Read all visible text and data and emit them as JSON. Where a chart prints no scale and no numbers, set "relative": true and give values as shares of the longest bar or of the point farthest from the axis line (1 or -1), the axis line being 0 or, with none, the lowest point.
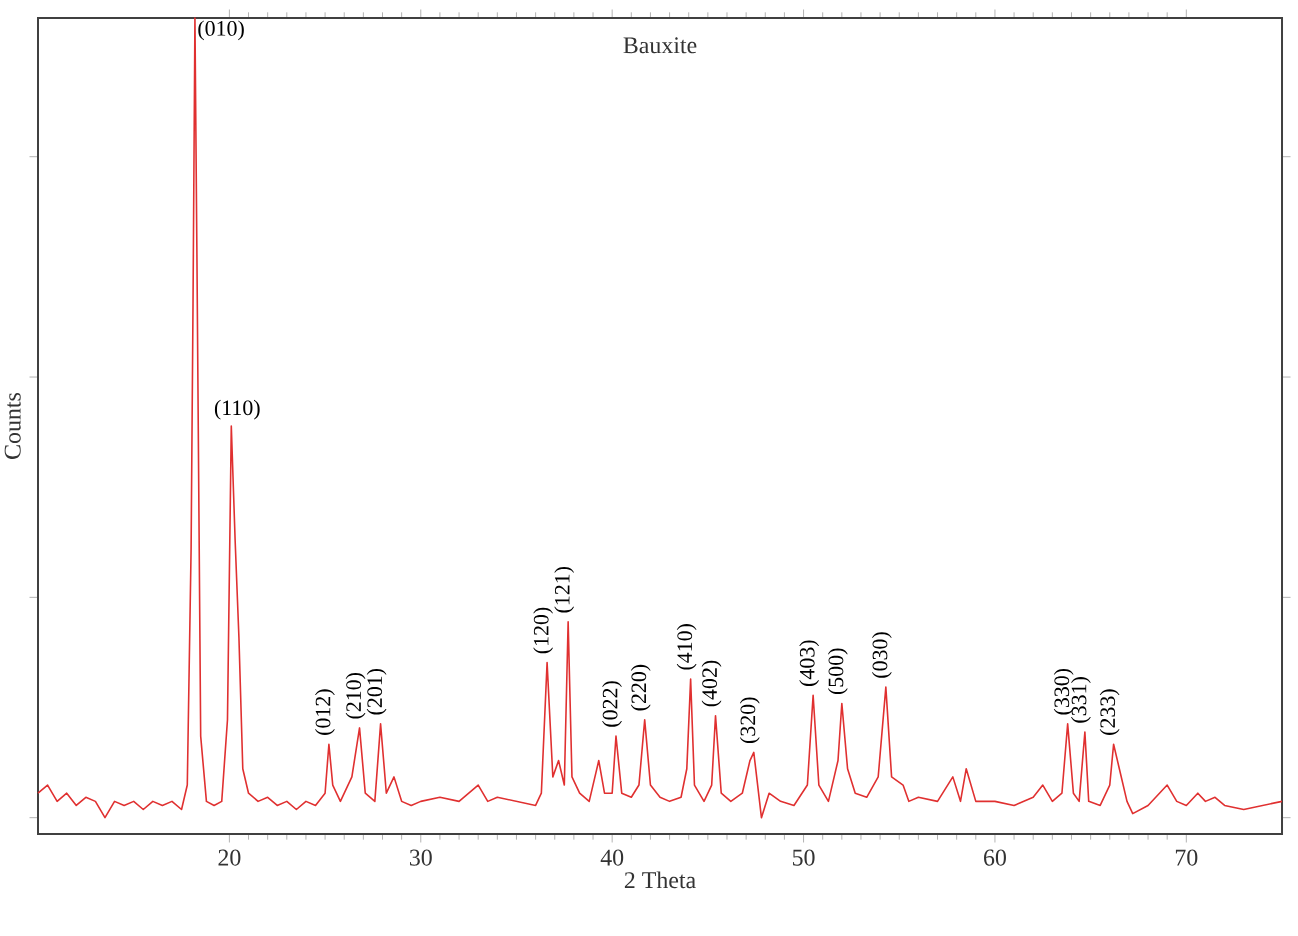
{
  "chart_data": {
    "type": "line",
    "title": "Bauxite",
    "xlabel": "2 Theta",
    "ylabel": "Counts",
    "relative": true,
    "tick_labels": "x",
    "grid": false,
    "marker": "none",
    "line_style": "solid",
    "xlim": [
      10,
      75
    ],
    "xticks": [
      20,
      30,
      40,
      50,
      60,
      70
    ],
    "series": [
      {
        "color": "#e03030",
        "x": [
          10,
          10.5,
          11,
          11.5,
          12,
          12.5,
          13,
          13.5,
          14,
          14.5,
          15,
          15.5,
          16,
          16.5,
          17,
          17.5,
          17.8,
          18.0,
          18.1,
          18.2,
          18.3,
          18.5,
          18.8,
          19.2,
          19.6,
          19.9,
          20.1,
          20.3,
          20.5,
          20.7,
          21,
          21.5,
          22,
          22.5,
          23,
          23.5,
          24,
          24.5,
          25.0,
          25.2,
          25.4,
          25.8,
          26.4,
          26.8,
          27.1,
          27.6,
          27.9,
          28.2,
          28.6,
          29,
          29.5,
          30,
          31,
          32,
          33,
          33.5,
          34,
          35,
          36,
          36.3,
          36.6,
          36.9,
          37.2,
          37.5,
          37.7,
          37.9,
          38.3,
          38.8,
          39.3,
          39.6,
          40.0,
          40.2,
          40.5,
          41.0,
          41.4,
          41.7,
          42.0,
          42.5,
          43,
          43.6,
          43.9,
          44.1,
          44.3,
          44.8,
          45.2,
          45.4,
          45.7,
          46.2,
          46.8,
          47.2,
          47.4,
          47.6,
          47.8,
          48.2,
          48.8,
          49.5,
          50.2,
          50.5,
          50.8,
          51.3,
          51.8,
          52.0,
          52.3,
          52.7,
          53.3,
          53.9,
          54.3,
          54.6,
          55.2,
          55.5,
          56,
          57,
          57.8,
          58.2,
          58.5,
          59,
          60,
          61,
          62,
          62.5,
          63,
          63.5,
          63.8,
          64.1,
          64.4,
          64.7,
          64.9,
          65.5,
          66.0,
          66.2,
          66.5,
          66.9,
          67.2,
          68,
          69,
          69.5,
          70,
          70.6,
          71,
          71.5,
          72,
          73,
          74,
          75
        ],
        "values": [
          0.05,
          0.06,
          0.04,
          0.05,
          0.035,
          0.045,
          0.04,
          0.02,
          0.04,
          0.035,
          0.04,
          0.03,
          0.04,
          0.035,
          0.04,
          0.03,
          0.06,
          0.35,
          0.65,
          1.0,
          0.72,
          0.12,
          0.04,
          0.035,
          0.04,
          0.14,
          0.5,
          0.36,
          0.24,
          0.08,
          0.05,
          0.04,
          0.045,
          0.035,
          0.04,
          0.03,
          0.04,
          0.035,
          0.05,
          0.11,
          0.06,
          0.04,
          0.07,
          0.13,
          0.05,
          0.04,
          0.135,
          0.05,
          0.07,
          0.04,
          0.035,
          0.04,
          0.045,
          0.04,
          0.06,
          0.04,
          0.045,
          0.04,
          0.035,
          0.05,
          0.21,
          0.07,
          0.09,
          0.06,
          0.26,
          0.07,
          0.05,
          0.04,
          0.09,
          0.05,
          0.05,
          0.12,
          0.05,
          0.045,
          0.06,
          0.14,
          0.06,
          0.045,
          0.04,
          0.045,
          0.08,
          0.19,
          0.06,
          0.04,
          0.06,
          0.145,
          0.05,
          0.04,
          0.05,
          0.09,
          0.1,
          0.06,
          0.02,
          0.05,
          0.04,
          0.035,
          0.06,
          0.17,
          0.06,
          0.04,
          0.09,
          0.16,
          0.08,
          0.05,
          0.045,
          0.07,
          0.18,
          0.07,
          0.06,
          0.04,
          0.045,
          0.04,
          0.07,
          0.04,
          0.08,
          0.04,
          0.04,
          0.035,
          0.045,
          0.06,
          0.04,
          0.05,
          0.135,
          0.05,
          0.04,
          0.125,
          0.04,
          0.035,
          0.06,
          0.11,
          0.08,
          0.04,
          0.025,
          0.035,
          0.06,
          0.04,
          0.035,
          0.05,
          0.04,
          0.045,
          0.035,
          0.03,
          0.035,
          0.04
        ]
      }
    ],
    "annotations": [
      {
        "text": "(010)",
        "x": 18.2,
        "y": 1.0
      },
      {
        "text": "(110)",
        "x": 20.1,
        "y": 0.5
      },
      {
        "text": "(012)",
        "x": 25.2,
        "y": 0.11
      },
      {
        "text": "(210)",
        "x": 26.8,
        "y": 0.13
      },
      {
        "text": "(201)",
        "x": 27.9,
        "y": 0.135
      },
      {
        "text": "(120)",
        "x": 36.6,
        "y": 0.21
      },
      {
        "text": "(121)",
        "x": 37.7,
        "y": 0.26
      },
      {
        "text": "(022)",
        "x": 40.2,
        "y": 0.12
      },
      {
        "text": "(220)",
        "x": 41.7,
        "y": 0.14
      },
      {
        "text": "(410)",
        "x": 44.1,
        "y": 0.19
      },
      {
        "text": "(402)",
        "x": 45.4,
        "y": 0.145
      },
      {
        "text": "(320)",
        "x": 47.4,
        "y": 0.1
      },
      {
        "text": "(403)",
        "x": 50.5,
        "y": 0.17
      },
      {
        "text": "(500)",
        "x": 52.0,
        "y": 0.16
      },
      {
        "text": "(030)",
        "x": 54.3,
        "y": 0.18
      },
      {
        "text": "(330)",
        "x": 63.8,
        "y": 0.135
      },
      {
        "text": "(331)",
        "x": 64.7,
        "y": 0.125
      },
      {
        "text": "(233)",
        "x": 66.2,
        "y": 0.11
      }
    ]
  }
}
